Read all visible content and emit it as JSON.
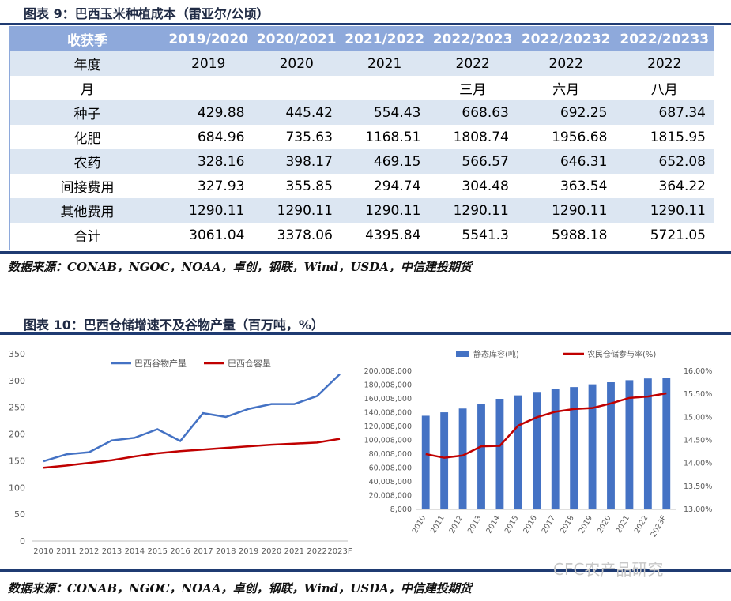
{
  "table_caption": "图表 9：巴西玉米种植成本（雷亚尔/公顷）",
  "table": {
    "header": [
      "收获季",
      "2019/2020",
      "2020/2021",
      "2021/2022",
      "2022/2023",
      "2022/20232",
      "2022/20233"
    ],
    "year_row": [
      "年度",
      "2019",
      "2020",
      "2021",
      "2022",
      "2022",
      "2022"
    ],
    "month_row": [
      "月",
      "",
      "",
      "",
      "三月",
      "六月",
      "八月"
    ],
    "rows": [
      {
        "label": "种子",
        "values": [
          "429.88",
          "445.42",
          "554.43",
          "668.63",
          "692.25",
          "687.34"
        ]
      },
      {
        "label": "化肥",
        "values": [
          "684.96",
          "735.63",
          "1168.51",
          "1808.74",
          "1956.68",
          "1815.95"
        ]
      },
      {
        "label": "农药",
        "values": [
          "328.16",
          "398.17",
          "469.15",
          "566.57",
          "646.31",
          "652.08"
        ]
      },
      {
        "label": "间接费用",
        "values": [
          "327.93",
          "355.85",
          "294.74",
          "304.48",
          "363.54",
          "364.22"
        ]
      },
      {
        "label": "其他费用",
        "values": [
          "1290.11",
          "1290.11",
          "1290.11",
          "1290.11",
          "1290.11",
          "1290.11"
        ]
      },
      {
        "label": "合计",
        "values": [
          "3061.04",
          "3378.06",
          "4395.84",
          "5541.3",
          "5988.18",
          "5721.05"
        ]
      }
    ]
  },
  "source_1": "数据来源：CONAB，NGOC，NOAA，卓创，钢联，Wind，USDA，中信建投期货",
  "chart_caption": "图表 10：巴西仓储增速不及谷物产量（百万吨，%）",
  "source_2": "数据来源：CONAB，NGOC，NOAA，卓创，钢联，Wind，USDA，中信建投期货",
  "watermark": "CFC农产品研究",
  "colors": {
    "blue": "#4472c4",
    "red": "#c00000",
    "header": "#8ea9db",
    "band": "#dce6f2",
    "rule": "#1f3b72"
  },
  "chart_data": [
    {
      "type": "line",
      "x": [
        "2010",
        "2011",
        "2012",
        "2013",
        "2014",
        "2015",
        "2016",
        "2017",
        "2018",
        "2019",
        "2020",
        "2021",
        "2022",
        "2023F"
      ],
      "ylim": [
        0,
        350
      ],
      "yticks": [
        "0",
        "50",
        "100",
        "150",
        "200",
        "250",
        "300",
        "350"
      ],
      "legend": "top",
      "series": [
        {
          "name": "巴西谷物产量",
          "color": "#4472c4",
          "values": [
            149,
            162,
            166,
            188,
            193,
            209,
            187,
            239,
            232,
            247,
            256,
            256,
            271,
            312
          ]
        },
        {
          "name": "巴西仓容量",
          "color": "#c00000",
          "values": [
            137,
            141,
            146,
            151,
            158,
            164,
            168,
            171,
            174,
            177,
            180,
            182,
            184,
            191
          ]
        }
      ]
    },
    {
      "type": "bar",
      "x": [
        "2010",
        "2011",
        "2012",
        "2013",
        "2014",
        "2015",
        "2016",
        "2017",
        "2018",
        "2019",
        "2020",
        "2021",
        "2022",
        "2023F"
      ],
      "ylim_left": [
        8000,
        200008000
      ],
      "yticks_left": [
        "8,000",
        "20,008,000",
        "40,008,000",
        "60,008,000",
        "80,008,000",
        "100,008,000",
        "120,008,000",
        "140,008,000",
        "160,008,000",
        "180,008,000",
        "200,008,000"
      ],
      "ylim_right": [
        13.0,
        16.0
      ],
      "yticks_right": [
        "13.00%",
        "13.50%",
        "14.00%",
        "14.50%",
        "15.00%",
        "15.50%",
        "16.00%"
      ],
      "legend": "top",
      "series": [
        {
          "name": "静态库容(吨)",
          "color": "#4472c4",
          "axis": "left",
          "values": [
            135500000,
            140500000,
            146000000,
            152000000,
            160000000,
            165000000,
            170000000,
            174000000,
            177000000,
            181000000,
            184000000,
            187000000,
            189500000,
            190000000
          ]
        },
        {
          "name": "农民仓储参与率(%)",
          "color": "#c00000",
          "axis": "right",
          "values": [
            14.2,
            14.12,
            14.17,
            14.37,
            14.38,
            14.82,
            15.0,
            15.12,
            15.18,
            15.2,
            15.3,
            15.42,
            15.45,
            15.52
          ]
        }
      ]
    }
  ]
}
